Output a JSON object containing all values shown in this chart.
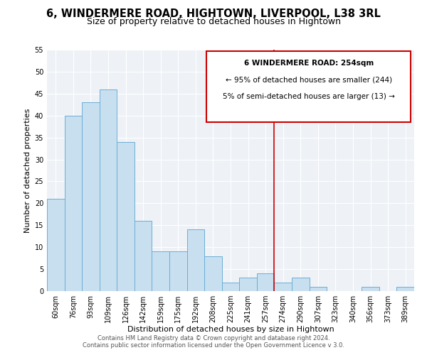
{
  "title": "6, WINDERMERE ROAD, HIGHTOWN, LIVERPOOL, L38 3RL",
  "subtitle": "Size of property relative to detached houses in Hightown",
  "xlabel": "Distribution of detached houses by size in Hightown",
  "ylabel": "Number of detached properties",
  "bar_labels": [
    "60sqm",
    "76sqm",
    "93sqm",
    "109sqm",
    "126sqm",
    "142sqm",
    "159sqm",
    "175sqm",
    "192sqm",
    "208sqm",
    "225sqm",
    "241sqm",
    "257sqm",
    "274sqm",
    "290sqm",
    "307sqm",
    "323sqm",
    "340sqm",
    "356sqm",
    "373sqm",
    "389sqm"
  ],
  "bar_values": [
    21,
    40,
    43,
    46,
    34,
    16,
    9,
    9,
    14,
    8,
    2,
    3,
    4,
    2,
    3,
    1,
    0,
    0,
    1,
    0,
    1
  ],
  "bar_color": "#c8dff0",
  "bar_edge_color": "#6aaed6",
  "vline_x_index": 12,
  "vline_color": "#cc0000",
  "ylim": [
    0,
    55
  ],
  "yticks": [
    0,
    5,
    10,
    15,
    20,
    25,
    30,
    35,
    40,
    45,
    50,
    55
  ],
  "annotation_title": "6 WINDERMERE ROAD: 254sqm",
  "annotation_line1": "← 95% of detached houses are smaller (244)",
  "annotation_line2": "5% of semi-detached houses are larger (13) →",
  "footer_line1": "Contains HM Land Registry data © Crown copyright and database right 2024.",
  "footer_line2": "Contains public sector information licensed under the Open Government Licence v 3.0.",
  "title_fontsize": 10.5,
  "subtitle_fontsize": 9,
  "axis_label_fontsize": 8,
  "tick_fontsize": 7,
  "annotation_fontsize": 7.5,
  "footer_fontsize": 6,
  "background_color": "#eef2f7",
  "grid_color": "#ffffff"
}
